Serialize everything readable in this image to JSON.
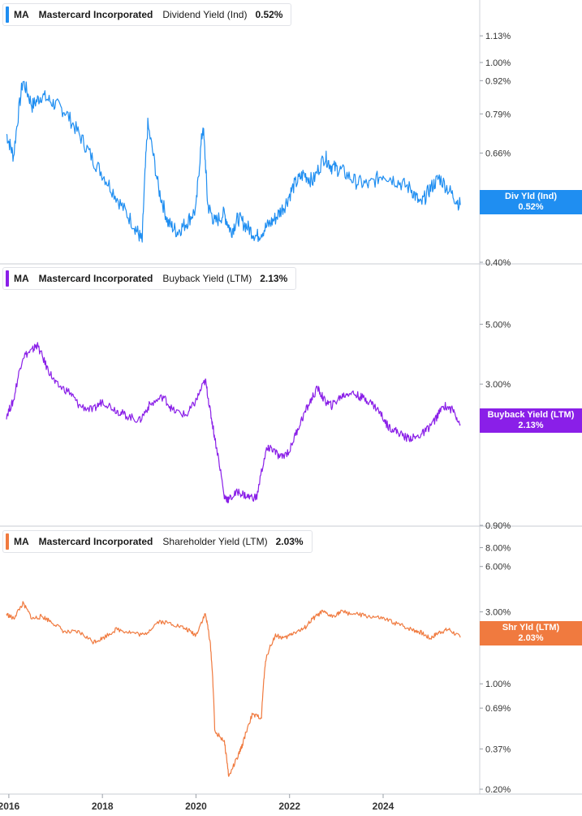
{
  "panels": [
    {
      "ticker": "MA",
      "company": "Mastercard Incorporated",
      "metric": "Dividend Yield (Ind)",
      "value": "0.52%",
      "tag_label": "Div Yld (Ind)",
      "tag_value": "0.52%",
      "color": "#1f8ef1",
      "ticks": [
        "1.13%",
        "1.00%",
        "0.92%",
        "0.79%",
        "0.66%",
        "0.40%"
      ]
    },
    {
      "ticker": "MA",
      "company": "Mastercard Incorporated",
      "metric": "Buyback Yield (LTM)",
      "value": "2.13%",
      "tag_label": "Buyback Yield (LTM)",
      "tag_value": "2.13%",
      "color": "#8a1fe8",
      "ticks": [
        "5.00%",
        "3.00%",
        "0.90%"
      ]
    },
    {
      "ticker": "MA",
      "company": "Mastercard Incorporated",
      "metric": "Shareholder Yield (LTM)",
      "value": "2.03%",
      "tag_label": "Shr Yld (LTM)",
      "tag_value": "2.03%",
      "color": "#f07a3f",
      "ticks": [
        "8.00%",
        "6.00%",
        "3.00%",
        "1.00%",
        "0.69%",
        "0.37%",
        "0.20%"
      ]
    }
  ],
  "x_axis": {
    "tick_labels": [
      "2016",
      "2018",
      "2020",
      "2022",
      "2024"
    ]
  },
  "chart_data": [
    {
      "type": "line",
      "title": "MA Mastercard Incorporated Dividend Yield (Ind) 0.52%",
      "log_scale": true,
      "ylim": [
        0.4,
        1.2
      ],
      "x": [
        2015.95,
        2016.1,
        2016.3,
        2016.5,
        2016.7,
        2016.95,
        2017.2,
        2017.5,
        2017.8,
        2018.1,
        2018.4,
        2018.7,
        2018.85,
        2018.97,
        2019.2,
        2019.4,
        2019.6,
        2019.8,
        2020.0,
        2020.15,
        2020.25,
        2020.4,
        2020.6,
        2020.75,
        2020.9,
        2021.1,
        2021.3,
        2021.5,
        2021.7,
        2021.9,
        2022.1,
        2022.3,
        2022.5,
        2022.75,
        2022.9,
        2023.1,
        2023.4,
        2023.7,
        2024.0,
        2024.3,
        2024.6,
        2024.8,
        2025.0,
        2025.2,
        2025.45,
        2025.65
      ],
      "series": [
        {
          "values": [
            0.72,
            0.65,
            0.92,
            0.82,
            0.86,
            0.83,
            0.8,
            0.72,
            0.64,
            0.58,
            0.52,
            0.47,
            0.44,
            0.75,
            0.56,
            0.48,
            0.46,
            0.48,
            0.51,
            0.75,
            0.52,
            0.48,
            0.5,
            0.46,
            0.49,
            0.47,
            0.45,
            0.47,
            0.49,
            0.52,
            0.57,
            0.6,
            0.58,
            0.65,
            0.62,
            0.61,
            0.58,
            0.57,
            0.6,
            0.58,
            0.56,
            0.52,
            0.56,
            0.59,
            0.55,
            0.52
          ]
        }
      ]
    },
    {
      "type": "line",
      "title": "MA Mastercard Incorporated Buyback Yield (LTM) 2.13%",
      "log_scale": true,
      "ylim": [
        0.9,
        6.0
      ],
      "x": [
        2015.95,
        2016.1,
        2016.3,
        2016.5,
        2016.6,
        2016.8,
        2017.0,
        2017.3,
        2017.5,
        2017.8,
        2018.0,
        2018.3,
        2018.5,
        2018.8,
        2019.0,
        2019.3,
        2019.5,
        2019.8,
        2020.0,
        2020.2,
        2020.3,
        2020.4,
        2020.6,
        2020.7,
        2020.9,
        2021.1,
        2021.3,
        2021.5,
        2021.6,
        2021.8,
        2022.0,
        2022.2,
        2022.4,
        2022.6,
        2022.75,
        2022.9,
        2023.1,
        2023.3,
        2023.5,
        2023.7,
        2023.9,
        2024.1,
        2024.3,
        2024.5,
        2024.7,
        2024.9,
        2025.1,
        2025.3,
        2025.5,
        2025.65
      ],
      "series": [
        {
          "values": [
            2.3,
            2.6,
            3.8,
            4.0,
            4.2,
            3.5,
            3.0,
            2.8,
            2.5,
            2.4,
            2.6,
            2.4,
            2.3,
            2.2,
            2.5,
            2.7,
            2.4,
            2.3,
            2.6,
            3.1,
            2.4,
            1.9,
            1.15,
            1.12,
            1.2,
            1.15,
            1.14,
            1.7,
            1.75,
            1.6,
            1.7,
            2.1,
            2.5,
            2.9,
            2.6,
            2.5,
            2.7,
            2.8,
            2.7,
            2.6,
            2.4,
            2.1,
            2.0,
            1.9,
            1.9,
            2.0,
            2.2,
            2.5,
            2.4,
            2.13
          ]
        }
      ]
    },
    {
      "type": "line",
      "title": "MA Mastercard Incorporated Shareholder Yield (LTM) 2.03%",
      "log_scale": true,
      "ylim": [
        0.2,
        9.0
      ],
      "x": [
        2015.95,
        2016.1,
        2016.3,
        2016.5,
        2016.7,
        2016.9,
        2017.2,
        2017.5,
        2017.8,
        2018.0,
        2018.3,
        2018.6,
        2018.9,
        2019.2,
        2019.5,
        2019.8,
        2020.0,
        2020.2,
        2020.3,
        2020.4,
        2020.6,
        2020.7,
        2020.9,
        2021.0,
        2021.2,
        2021.4,
        2021.5,
        2021.7,
        2021.9,
        2022.1,
        2022.3,
        2022.5,
        2022.7,
        2022.9,
        2023.1,
        2023.4,
        2023.7,
        2024.0,
        2024.3,
        2024.6,
        2024.8,
        2025.0,
        2025.2,
        2025.4,
        2025.65
      ],
      "series": [
        {
          "values": [
            2.9,
            2.7,
            3.4,
            2.7,
            2.8,
            2.6,
            2.2,
            2.2,
            1.9,
            2.0,
            2.3,
            2.2,
            2.1,
            2.6,
            2.5,
            2.3,
            2.1,
            2.9,
            1.9,
            0.48,
            0.42,
            0.24,
            0.33,
            0.4,
            0.62,
            0.6,
            1.5,
            2.1,
            2.0,
            2.2,
            2.3,
            2.7,
            3.0,
            2.8,
            3.0,
            2.9,
            2.8,
            2.7,
            2.5,
            2.3,
            2.2,
            2.0,
            2.2,
            2.3,
            2.03
          ]
        }
      ]
    }
  ]
}
